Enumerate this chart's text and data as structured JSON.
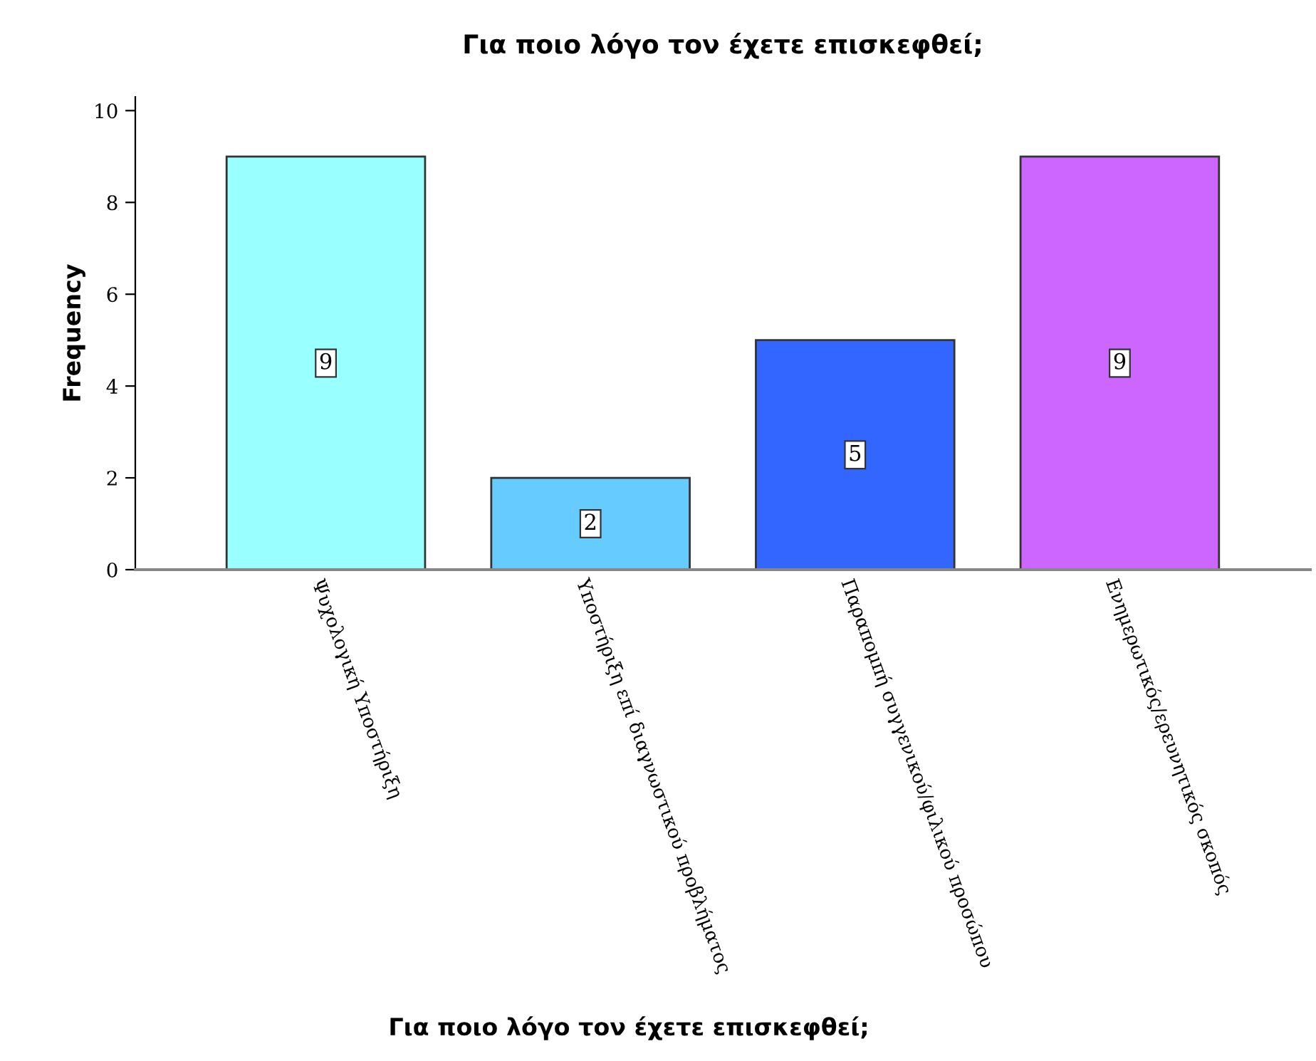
{
  "chart_data": {
    "type": "bar",
    "title": "Για ποιο λόγο τον έχετε επισκεφθεί;",
    "xlabel": "Για ποιο λόγο τον έχετε επισκεφθεί;",
    "ylabel": "Frequency",
    "categories": [
      "Ψυχολογική Υποστήριξη",
      "Υποστήριξη επί διαγνωστικού προβλήματος",
      "Παραπομπή συγγενικού/φιλικού προσώπου",
      "Ενημερωτικός/ερευνητικός σκοπός"
    ],
    "values": [
      9,
      2,
      5,
      9
    ],
    "colors": [
      "#99ffff",
      "#66ccff",
      "#3366ff",
      "#cc66ff"
    ],
    "ylim": [
      0,
      10.3
    ],
    "yticks": [
      0,
      2,
      4,
      6,
      8,
      10
    ],
    "grid": false,
    "data_labels": true
  }
}
